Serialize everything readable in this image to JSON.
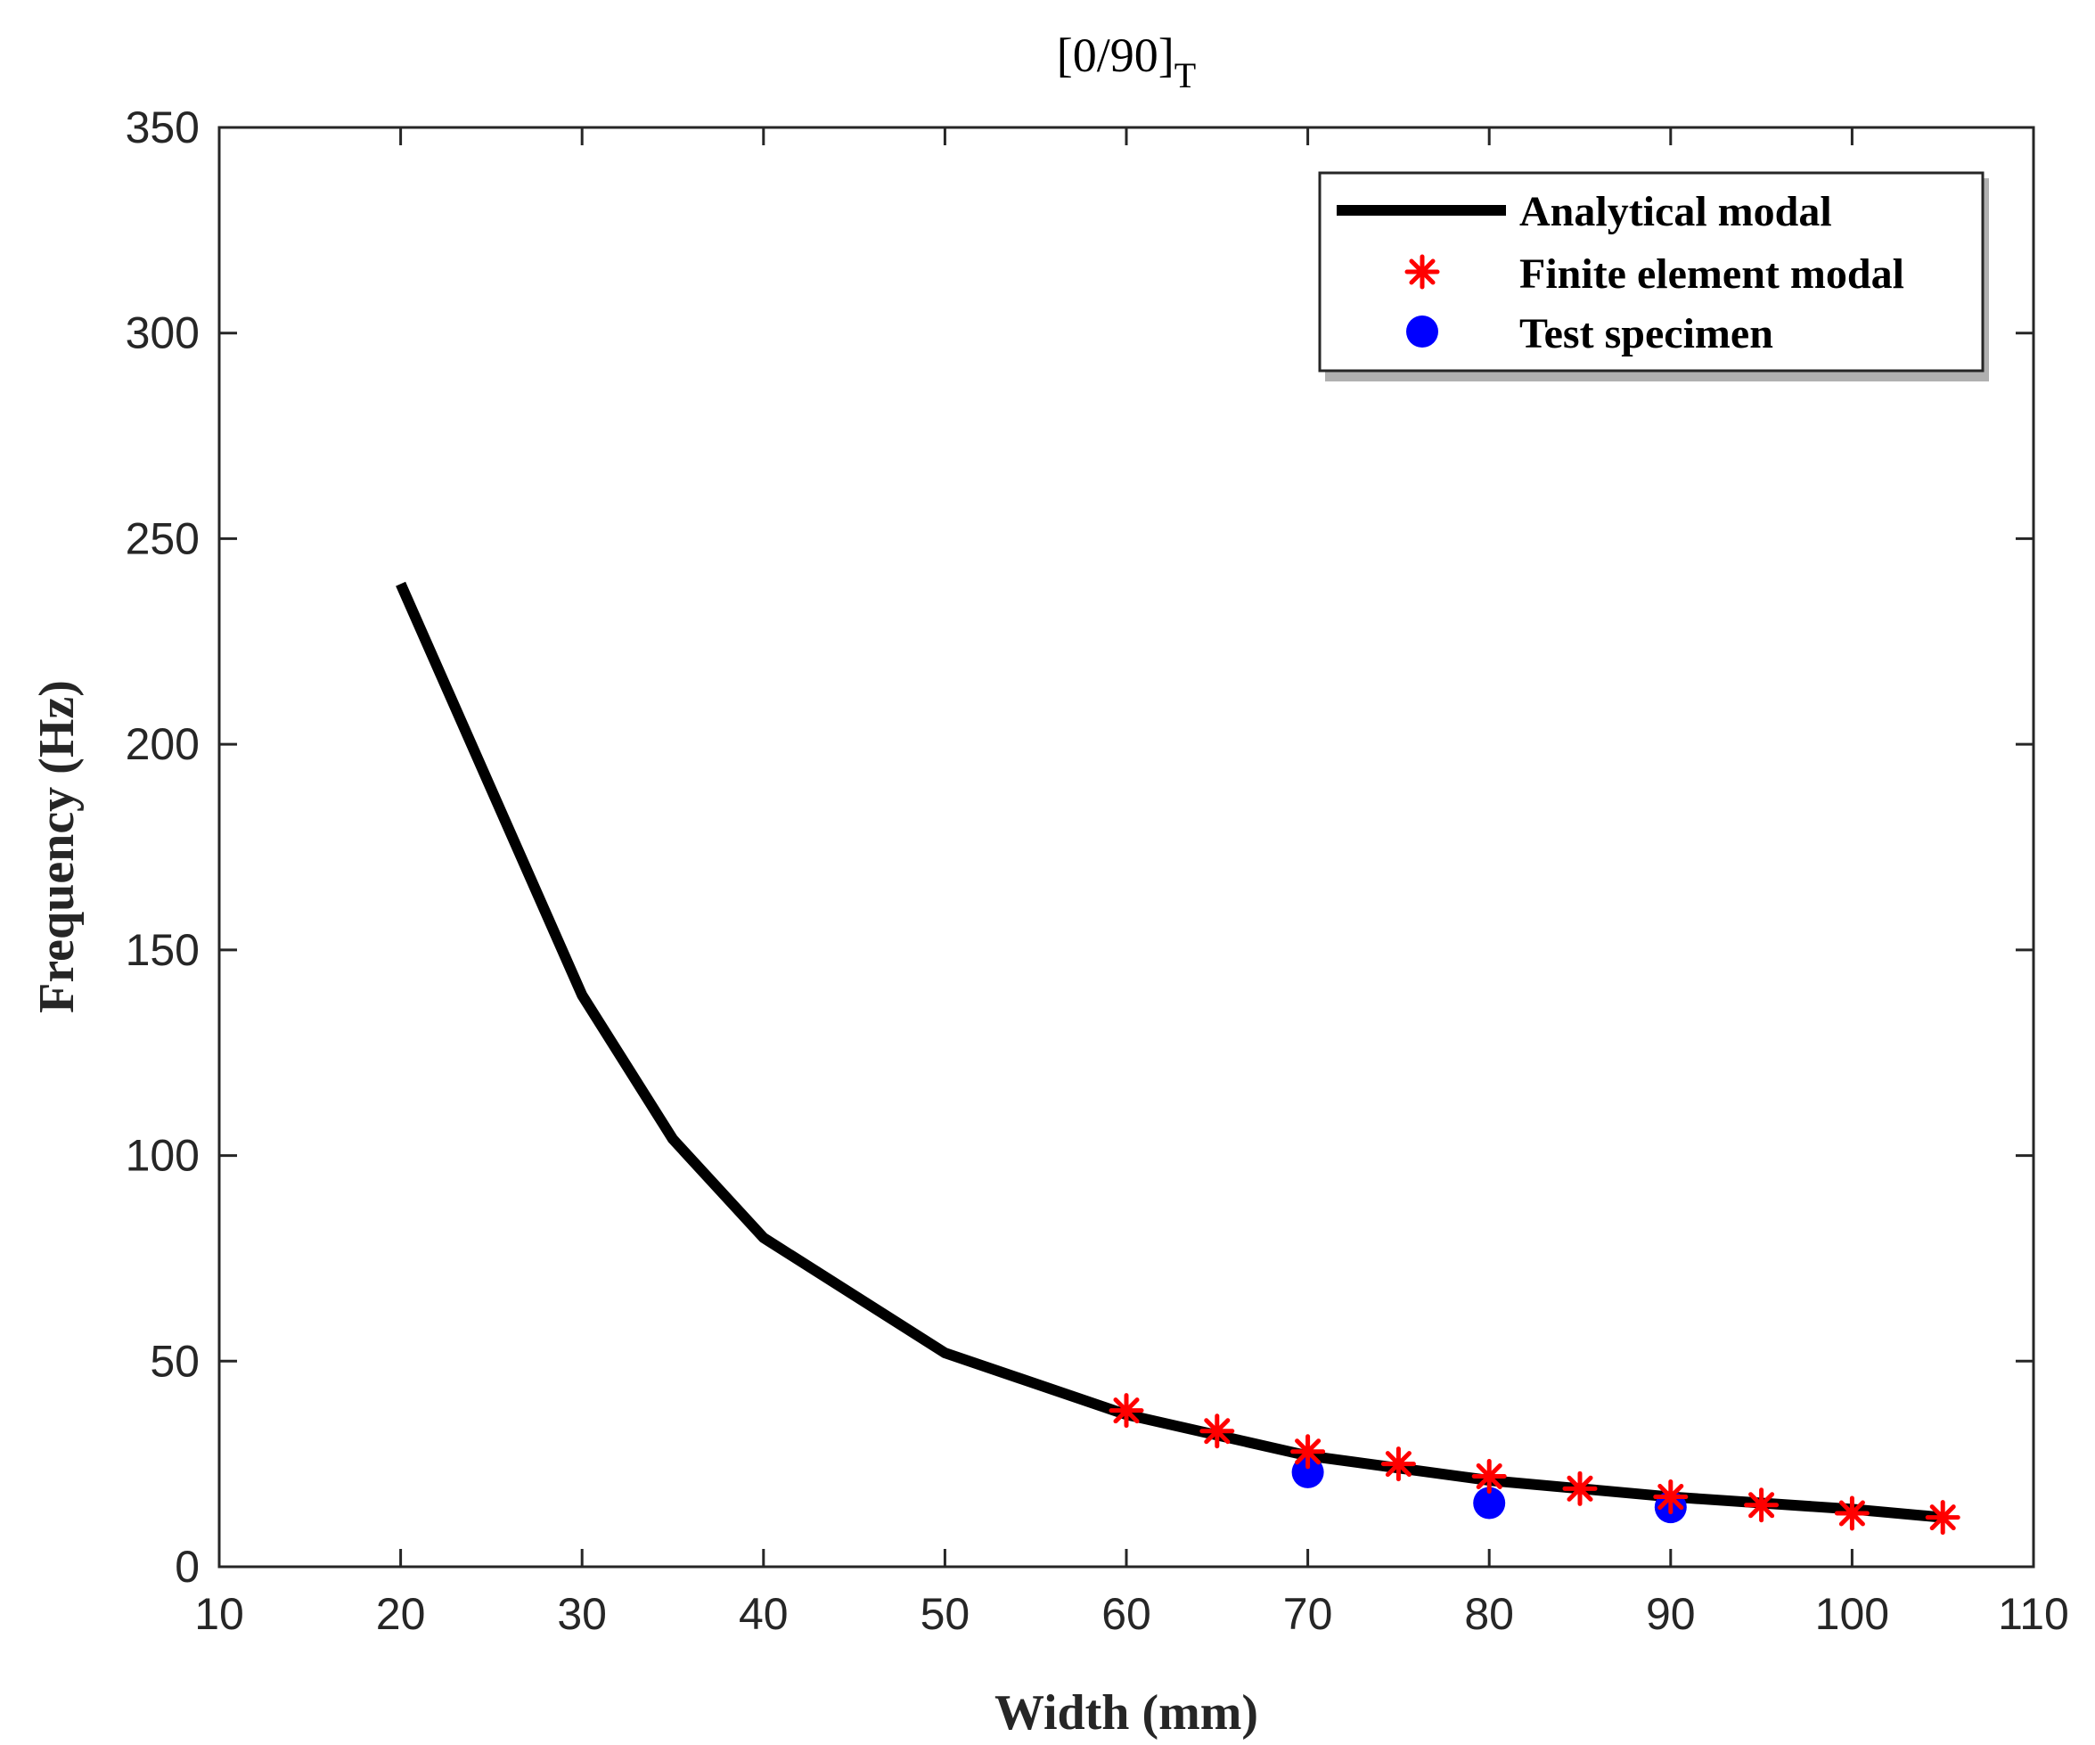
{
  "chart_data": {
    "type": "line",
    "title": "[0/90]",
    "title_subscript": "T",
    "xlabel": "Width (mm)",
    "ylabel": "Frequency (Hz)",
    "xlim": [
      10,
      110
    ],
    "ylim": [
      0,
      350
    ],
    "xticks": [
      10,
      20,
      30,
      40,
      50,
      60,
      70,
      80,
      90,
      100,
      110
    ],
    "yticks": [
      0,
      50,
      100,
      150,
      200,
      250,
      300,
      350
    ],
    "grid": false,
    "legend_position": "top-right",
    "series": [
      {
        "name": "Analytical modal",
        "kind": "line",
        "color": "#000000",
        "x": [
          20,
          30,
          35,
          40,
          50,
          60,
          70,
          80,
          90,
          100,
          105
        ],
        "y": [
          239,
          139,
          104,
          80,
          52,
          37,
          27,
          21,
          17,
          14,
          12
        ]
      },
      {
        "name": "Finite element modal",
        "kind": "scatter-star",
        "color": "#ff0000",
        "x": [
          60,
          65,
          70,
          75,
          80,
          85,
          90,
          95,
          100,
          105
        ],
        "y": [
          38,
          33,
          28,
          25,
          22,
          19,
          17,
          15,
          13,
          12
        ]
      },
      {
        "name": "Test specimen",
        "kind": "scatter-dot",
        "color": "#0000ff",
        "x": [
          70,
          80,
          90
        ],
        "y": [
          23,
          15.5,
          14.5
        ]
      }
    ]
  }
}
